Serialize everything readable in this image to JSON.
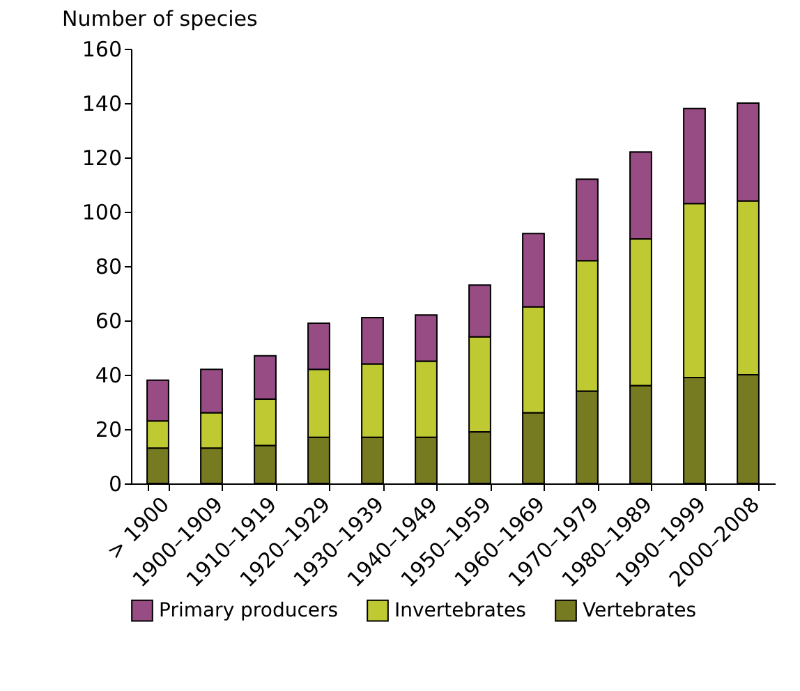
{
  "chart_data": {
    "type": "bar",
    "stacked": true,
    "ylabel": "Number of species",
    "categories": [
      "> 1900",
      "1900–1909",
      "1910–1919",
      "1920–1929",
      "1930–1939",
      "1940–1949",
      "1950–1959",
      "1960–1969",
      "1970–1979",
      "1980–1989",
      "1990–1999",
      "2000–2008"
    ],
    "series": [
      {
        "name": "Vertebrates",
        "color": "#767a21",
        "values": [
          13,
          13,
          14,
          17,
          17,
          17,
          19,
          26,
          34,
          36,
          39,
          40
        ]
      },
      {
        "name": "Invertebrates",
        "color": "#bfca33",
        "values": [
          10,
          13,
          17,
          25,
          27,
          28,
          35,
          39,
          48,
          54,
          64,
          64
        ]
      },
      {
        "name": "Primary producers",
        "color": "#974c84",
        "values": [
          15,
          16,
          16,
          17,
          17,
          17,
          19,
          27,
          30,
          32,
          35,
          36
        ]
      }
    ],
    "ylim": [
      0,
      160
    ],
    "yticks": [
      0,
      20,
      40,
      60,
      80,
      100,
      120,
      140,
      160
    ],
    "grid": false,
    "legend": "bottom"
  }
}
